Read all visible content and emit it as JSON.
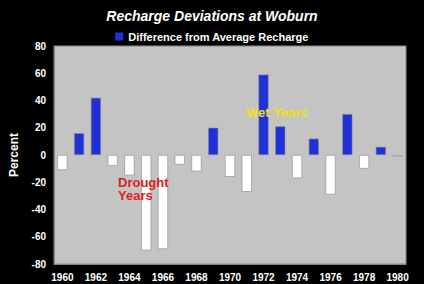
{
  "chart_data": {
    "type": "bar",
    "title": "Recharge Deviations at Woburn",
    "y_label": "Percent",
    "categories": [
      "1960",
      null,
      "1962",
      null,
      "1964",
      null,
      "1966",
      null,
      "1968",
      null,
      "1970",
      null,
      "1972",
      null,
      "1974",
      null,
      "1976",
      null,
      "1978",
      null,
      "1980"
    ],
    "series": [
      {
        "name": "Difference from Average Recharge",
        "color": "#2030d8",
        "values": [
          -11,
          16,
          42,
          -8,
          -15,
          -70,
          -69,
          -7,
          -12,
          20,
          -16,
          -27,
          59,
          21,
          -17,
          12,
          -29,
          30,
          -10,
          6,
          -1
        ],
        "colors": [
          "#ffffff",
          "#2030d8",
          "#2030d8",
          "#ffffff",
          "#ffffff",
          "#ffffff",
          "#ffffff",
          "#ffffff",
          "#ffffff",
          "#2030d8",
          "#ffffff",
          "#ffffff",
          "#2030d8",
          "#2030d8",
          "#ffffff",
          "#2030d8",
          "#ffffff",
          "#2030d8",
          "#ffffff",
          "#2030d8",
          "#ffffff"
        ]
      }
    ],
    "ylim": [
      -80,
      80
    ],
    "yticks": [
      -80,
      -60,
      -40,
      -20,
      0,
      20,
      40,
      60,
      80
    ],
    "grid": false,
    "legend": "top",
    "annotations": [
      {
        "text": "Drought Years",
        "color": "#e02018"
      },
      {
        "text": "Wet Years",
        "color": "#f0e020"
      }
    ]
  }
}
